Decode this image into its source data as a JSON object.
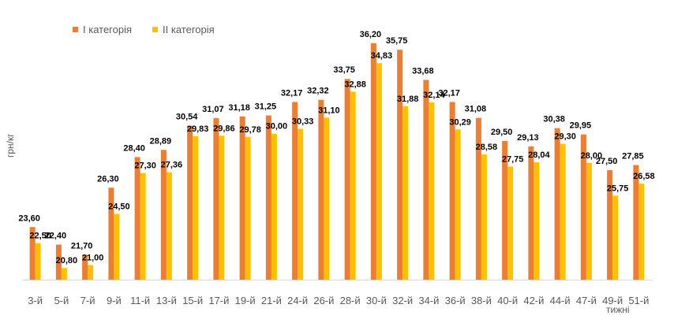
{
  "chart_data": {
    "type": "bar",
    "title": "",
    "ylabel": "грн/кг",
    "xlabel": "тижні",
    "ylim": [
      20,
      37
    ],
    "categories": [
      "3-й",
      "5-й",
      "7-й",
      "9-й",
      "11-й",
      "13-й",
      "15-й",
      "17-й",
      "19-й",
      "21-й",
      "24-й",
      "26-й",
      "28-й",
      "30-й",
      "32-й",
      "34-й",
      "36-й",
      "38-й",
      "40-й",
      "42-й",
      "44-й",
      "47-й",
      "49-й",
      "51-й"
    ],
    "series": [
      {
        "name": "I категорія",
        "color": "#ED7D31",
        "values": [
          23.6,
          22.4,
          21.7,
          26.3,
          28.4,
          28.89,
          30.54,
          31.07,
          31.18,
          31.25,
          32.17,
          32.32,
          33.75,
          36.2,
          35.75,
          33.68,
          32.17,
          31.08,
          29.5,
          29.13,
          30.38,
          29.95,
          27.5,
          27.85
        ],
        "labels": [
          "23,60",
          "22,40",
          "21,70",
          "26,30",
          "28,40",
          "28,89",
          "30,54",
          "31,07",
          "31,18",
          "31,25",
          "32,17",
          "32,32",
          "33,75",
          "36,20",
          "35,75",
          "33,68",
          "32,17",
          "31,08",
          "29,50",
          "29,13",
          "30,38",
          "29,95",
          "27,50",
          "27,85"
        ]
      },
      {
        "name": "II категорія",
        "color": "#FFC000",
        "values": [
          22.5,
          20.8,
          21.0,
          24.5,
          27.3,
          27.36,
          29.83,
          29.86,
          29.78,
          30.0,
          30.33,
          31.1,
          32.88,
          34.83,
          31.88,
          32.14,
          30.29,
          28.58,
          27.75,
          28.04,
          29.3,
          28.0,
          25.75,
          26.58
        ],
        "labels": [
          "22,50",
          "20,80",
          "21,00",
          "24,50",
          "27,30",
          "27,36",
          "29,83",
          "29,86",
          "29,78",
          "30,00",
          "30,33",
          "31,10",
          "32,88",
          "34,83",
          "31,88",
          "32,14",
          "30,29",
          "28,58",
          "27,75",
          "28,04",
          "29,30",
          "28,00",
          "25,75",
          "26,58"
        ]
      }
    ],
    "legend_position": "top-left",
    "grid": false
  }
}
